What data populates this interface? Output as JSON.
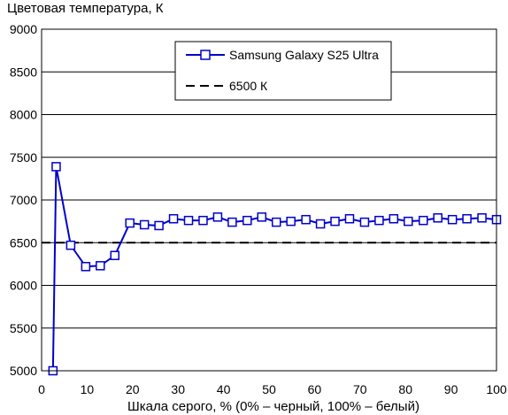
{
  "chart_data": {
    "type": "line",
    "ylabel": "Цветовая температура, К",
    "xlabel": "Шкала серого, % (0% – черный, 100% – белый)",
    "xlim": [
      0,
      100
    ],
    "ylim": [
      5000,
      9000
    ],
    "x_ticks": [
      "0",
      "10",
      "20",
      "30",
      "40",
      "50",
      "60",
      "70",
      "80",
      "90",
      "100"
    ],
    "y_ticks": [
      "5000",
      "5500",
      "6000",
      "6500",
      "7000",
      "7500",
      "8000",
      "8500",
      "9000"
    ],
    "grid": "horizontal",
    "legend": "top-right",
    "series": [
      {
        "name": "Samsung Galaxy S25 Ultra",
        "color": "#0000cc",
        "marker": "square",
        "x": [
          2.5,
          3.2,
          6.4,
          9.7,
          12.9,
          16.1,
          19.4,
          22.6,
          25.8,
          29.0,
          32.3,
          35.5,
          38.7,
          41.9,
          45.2,
          48.4,
          51.6,
          54.8,
          58.1,
          61.3,
          64.5,
          67.7,
          71.0,
          74.2,
          77.4,
          80.6,
          83.9,
          87.1,
          90.3,
          93.5,
          96.8,
          100.0
        ],
        "y": [
          5000,
          7390,
          6470,
          6220,
          6230,
          6350,
          6730,
          6710,
          6700,
          6780,
          6760,
          6760,
          6800,
          6740,
          6760,
          6800,
          6740,
          6750,
          6770,
          6720,
          6750,
          6780,
          6740,
          6760,
          6780,
          6750,
          6760,
          6790,
          6770,
          6780,
          6790,
          6770
        ]
      },
      {
        "name": "6500 К",
        "color": "#000000",
        "style": "dashed",
        "x": [
          0,
          100
        ],
        "y": [
          6500,
          6500
        ]
      }
    ]
  }
}
